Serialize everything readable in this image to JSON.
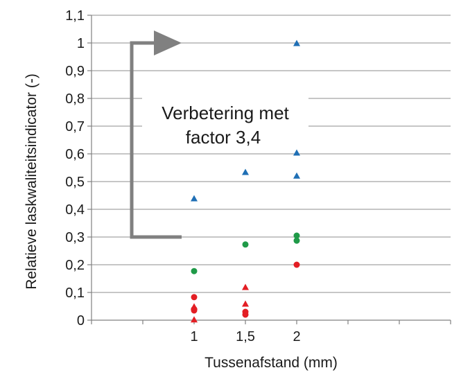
{
  "chart_data": {
    "type": "scatter",
    "title": "",
    "xlabel": "Tussenafstand (mm)",
    "ylabel": "Relatieve laskwaliteitsindicator (-)",
    "xlim": [
      0,
      3.5
    ],
    "ylim": [
      0,
      1.1
    ],
    "grid": true,
    "x_ticks": [
      {
        "value": 1,
        "label": "1"
      },
      {
        "value": 1.5,
        "label": "1,5"
      },
      {
        "value": 2,
        "label": "2"
      }
    ],
    "y_ticks": [
      {
        "value": 0,
        "label": "0"
      },
      {
        "value": 0.1,
        "label": "0,1"
      },
      {
        "value": 0.2,
        "label": "0,2"
      },
      {
        "value": 0.3,
        "label": "0,3"
      },
      {
        "value": 0.4,
        "label": "0,4"
      },
      {
        "value": 0.5,
        "label": "0,5"
      },
      {
        "value": 0.6,
        "label": "0,6"
      },
      {
        "value": 0.7,
        "label": "0,7"
      },
      {
        "value": 0.8,
        "label": "0,8"
      },
      {
        "value": 0.9,
        "label": "0,9"
      },
      {
        "value": 1,
        "label": "1"
      },
      {
        "value": 1.1,
        "label": "1,1"
      }
    ],
    "series": [
      {
        "marker": "triangle",
        "color": "#1f6fb5",
        "points": [
          [
            1,
            0.44
          ],
          [
            1.5,
            0.535
          ],
          [
            2,
            1.0
          ],
          [
            2,
            0.605
          ],
          [
            2,
            0.522
          ]
        ]
      },
      {
        "marker": "circle",
        "color": "#1f9a48",
        "points": [
          [
            1,
            0.177
          ],
          [
            1.5,
            0.273
          ],
          [
            2,
            0.305
          ],
          [
            2,
            0.287
          ]
        ]
      },
      {
        "marker": "circle",
        "color": "#e31e24",
        "points": [
          [
            1,
            0.083
          ],
          [
            1,
            0.04
          ],
          [
            1,
            0.035
          ],
          [
            1.5,
            0.03
          ],
          [
            1.5,
            0.02
          ],
          [
            2,
            0.2
          ]
        ]
      },
      {
        "marker": "triangle",
        "color": "#e31e24",
        "points": [
          [
            1,
            0.05
          ],
          [
            1,
            0.003
          ],
          [
            1.5,
            0.12
          ],
          [
            1.5,
            0.06
          ]
        ]
      }
    ],
    "annotation": {
      "lines": [
        "Verbetering met",
        "factor 3,4"
      ],
      "arrow_from": 0.3,
      "arrow_to": 1.0,
      "arrow_color": "#808080"
    }
  }
}
